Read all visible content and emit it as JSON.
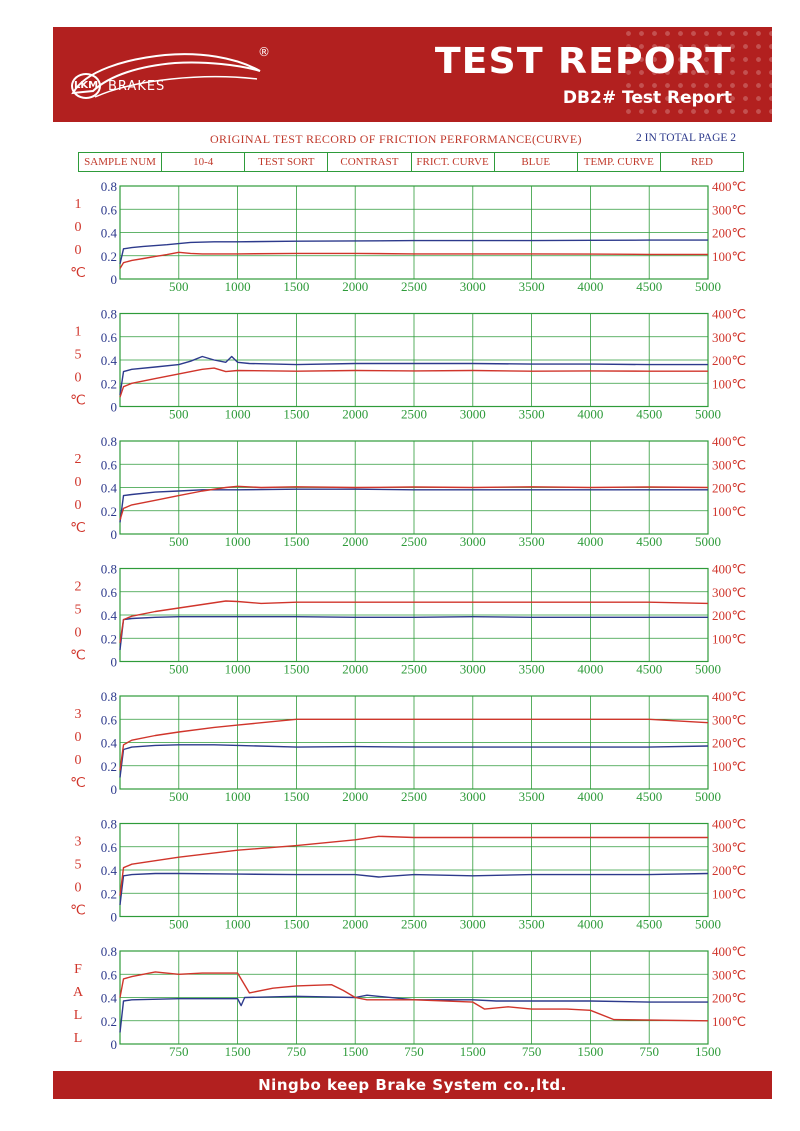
{
  "header": {
    "brand": "BRAKES",
    "brand_mark": "LKM",
    "registered": "®",
    "title": "TEST REPORT",
    "subtitle": "DB2# Test Report"
  },
  "record_title": "ORIGINAL TEST RECORD OF FRICTION PERFORMANCE(CURVE)",
  "page_label": "2 IN TOTAL PAGE 2",
  "info_table": [
    "SAMPLE NUM",
    "10-4",
    "TEST SORT",
    "CONTRAST",
    "FRICT. CURVE",
    "BLUE",
    "TEMP. CURVE",
    "RED"
  ],
  "footer": "Ningbo keep Brake System co.,ltd.",
  "colors": {
    "brand_red": "#b2201f",
    "grid": "#2e9b3a",
    "friction": "#2d3a8c",
    "temperature": "#d0352b"
  },
  "chart_data": [
    {
      "type": "line",
      "row_label": [
        "1",
        "0",
        "0",
        "℃"
      ],
      "x_ticks": [
        "500",
        "1000",
        "1500",
        "2000",
        "2500",
        "3000",
        "3500",
        "4000",
        "4500",
        "5000"
      ],
      "y_left_ticks": [
        "0",
        "0.2",
        "0.4",
        "0.6",
        "0.8"
      ],
      "y_right_ticks": [
        "100℃",
        "200℃",
        "300℃",
        "400℃"
      ],
      "xlim": [
        0,
        5000
      ],
      "ylim_left": [
        0,
        0.8
      ],
      "ylim_right": [
        0,
        400
      ],
      "series": [
        {
          "axis": "left",
          "color": "#2d3a8c",
          "x": [
            0,
            30,
            100,
            200,
            400,
            600,
            800,
            1000,
            1500,
            2000,
            2500,
            3000,
            3500,
            4000,
            4500,
            5000
          ],
          "y": [
            0.13,
            0.26,
            0.27,
            0.28,
            0.295,
            0.315,
            0.32,
            0.32,
            0.325,
            0.328,
            0.33,
            0.33,
            0.33,
            0.333,
            0.335,
            0.335
          ]
        },
        {
          "axis": "right",
          "color": "#d0352b",
          "x": [
            0,
            30,
            100,
            200,
            300,
            400,
            500,
            600,
            700,
            1000,
            1500,
            2000,
            2500,
            3000,
            3500,
            4000,
            4500,
            5000
          ],
          "y": [
            45,
            70,
            80,
            88,
            97,
            105,
            115,
            110,
            108,
            108,
            110,
            110,
            108,
            108,
            108,
            107,
            106,
            106
          ]
        }
      ]
    },
    {
      "type": "line",
      "row_label": [
        "1",
        "5",
        "0",
        "℃"
      ],
      "x_ticks": [
        "500",
        "1000",
        "1500",
        "2000",
        "2500",
        "3000",
        "3500",
        "4000",
        "4500",
        "5000"
      ],
      "y_left_ticks": [
        "0",
        "0.2",
        "0.4",
        "0.6",
        "0.8"
      ],
      "y_right_ticks": [
        "100℃",
        "200℃",
        "300℃",
        "400℃"
      ],
      "xlim": [
        0,
        5000
      ],
      "ylim_left": [
        0,
        0.8
      ],
      "ylim_right": [
        0,
        400
      ],
      "series": [
        {
          "axis": "left",
          "color": "#2d3a8c",
          "x": [
            0,
            30,
            100,
            300,
            500,
            600,
            700,
            800,
            900,
            950,
            1000,
            1100,
            1500,
            2000,
            2500,
            3000,
            3500,
            4000,
            4500,
            5000
          ],
          "y": [
            0.1,
            0.3,
            0.32,
            0.34,
            0.36,
            0.39,
            0.43,
            0.4,
            0.38,
            0.43,
            0.38,
            0.37,
            0.36,
            0.37,
            0.37,
            0.37,
            0.365,
            0.365,
            0.36,
            0.36
          ]
        },
        {
          "axis": "right",
          "color": "#d0352b",
          "x": [
            0,
            30,
            100,
            300,
            500,
            700,
            800,
            900,
            1000,
            1500,
            2000,
            2500,
            3000,
            3500,
            4000,
            4500,
            5000
          ],
          "y": [
            40,
            85,
            100,
            120,
            140,
            160,
            165,
            150,
            155,
            152,
            155,
            153,
            155,
            152,
            153,
            152,
            152
          ]
        }
      ]
    },
    {
      "type": "line",
      "row_label": [
        "2",
        "0",
        "0",
        "℃"
      ],
      "x_ticks": [
        "500",
        "1000",
        "1500",
        "2000",
        "2500",
        "3000",
        "3500",
        "4000",
        "4500",
        "5000"
      ],
      "y_left_ticks": [
        "0",
        "0.2",
        "0.4",
        "0.6",
        "0.8"
      ],
      "y_right_ticks": [
        "100℃",
        "200℃",
        "300℃",
        "400℃"
      ],
      "xlim": [
        0,
        5000
      ],
      "ylim_left": [
        0,
        0.8
      ],
      "ylim_right": [
        0,
        400
      ],
      "series": [
        {
          "axis": "left",
          "color": "#2d3a8c",
          "x": [
            0,
            30,
            100,
            300,
            500,
            700,
            1000,
            1500,
            2000,
            2500,
            3000,
            3500,
            4000,
            4500,
            5000
          ],
          "y": [
            0.1,
            0.33,
            0.34,
            0.36,
            0.37,
            0.38,
            0.38,
            0.385,
            0.385,
            0.38,
            0.38,
            0.38,
            0.38,
            0.38,
            0.38
          ]
        },
        {
          "axis": "right",
          "color": "#d0352b",
          "x": [
            0,
            30,
            100,
            300,
            500,
            700,
            900,
            1000,
            1200,
            1500,
            2000,
            2500,
            3000,
            3500,
            4000,
            4500,
            5000
          ],
          "y": [
            60,
            110,
            125,
            145,
            165,
            185,
            200,
            205,
            200,
            203,
            200,
            202,
            200,
            203,
            200,
            202,
            200
          ]
        }
      ]
    },
    {
      "type": "line",
      "row_label": [
        "2",
        "5",
        "0",
        "℃"
      ],
      "x_ticks": [
        "500",
        "1000",
        "1500",
        "2000",
        "2500",
        "3000",
        "3500",
        "4000",
        "4500",
        "5000"
      ],
      "y_left_ticks": [
        "0",
        "0.2",
        "0.4",
        "0.6",
        "0.8"
      ],
      "y_right_ticks": [
        "100℃",
        "200℃",
        "300℃",
        "400℃"
      ],
      "xlim": [
        0,
        5000
      ],
      "ylim_left": [
        0,
        0.8
      ],
      "ylim_right": [
        0,
        400
      ],
      "series": [
        {
          "axis": "left",
          "color": "#2d3a8c",
          "x": [
            0,
            30,
            100,
            300,
            500,
            1000,
            1500,
            2000,
            2500,
            3000,
            3500,
            4000,
            4500,
            5000
          ],
          "y": [
            0.1,
            0.36,
            0.37,
            0.38,
            0.385,
            0.385,
            0.385,
            0.38,
            0.38,
            0.385,
            0.38,
            0.38,
            0.38,
            0.38
          ]
        },
        {
          "axis": "right",
          "color": "#d0352b",
          "x": [
            0,
            30,
            100,
            300,
            500,
            700,
            900,
            1000,
            1200,
            1500,
            2000,
            2500,
            3000,
            3500,
            4000,
            4500,
            5000
          ],
          "y": [
            80,
            180,
            195,
            215,
            230,
            245,
            260,
            258,
            250,
            255,
            255,
            255,
            255,
            255,
            255,
            255,
            250
          ]
        }
      ]
    },
    {
      "type": "line",
      "row_label": [
        "3",
        "0",
        "0",
        "℃"
      ],
      "x_ticks": [
        "500",
        "1000",
        "1500",
        "2000",
        "2500",
        "3000",
        "3500",
        "4000",
        "4500",
        "5000"
      ],
      "y_left_ticks": [
        "0",
        "0.2",
        "0.4",
        "0.6",
        "0.8"
      ],
      "y_right_ticks": [
        "100℃",
        "200℃",
        "300℃",
        "400℃"
      ],
      "xlim": [
        0,
        5000
      ],
      "ylim_left": [
        0,
        0.8
      ],
      "ylim_right": [
        0,
        400
      ],
      "series": [
        {
          "axis": "left",
          "color": "#2d3a8c",
          "x": [
            0,
            30,
            100,
            300,
            500,
            800,
            1000,
            1500,
            2000,
            2500,
            3000,
            3500,
            4000,
            4500,
            5000
          ],
          "y": [
            0.1,
            0.34,
            0.36,
            0.375,
            0.38,
            0.38,
            0.375,
            0.36,
            0.365,
            0.36,
            0.36,
            0.36,
            0.36,
            0.36,
            0.37
          ]
        },
        {
          "axis": "right",
          "color": "#d0352b",
          "x": [
            0,
            30,
            100,
            300,
            500,
            800,
            1000,
            1300,
            1500,
            2000,
            2500,
            3000,
            3500,
            4000,
            4500,
            5000
          ],
          "y": [
            80,
            190,
            210,
            230,
            245,
            265,
            275,
            290,
            300,
            300,
            300,
            300,
            300,
            300,
            300,
            285
          ]
        }
      ]
    },
    {
      "type": "line",
      "row_label": [
        "3",
        "5",
        "0",
        "℃"
      ],
      "x_ticks": [
        "500",
        "1000",
        "1500",
        "2000",
        "2500",
        "3000",
        "3500",
        "4000",
        "4500",
        "5000"
      ],
      "y_left_ticks": [
        "0",
        "0.2",
        "0.4",
        "0.6",
        "0.8"
      ],
      "y_right_ticks": [
        "100℃",
        "200℃",
        "300℃",
        "400℃"
      ],
      "xlim": [
        0,
        5000
      ],
      "ylim_left": [
        0,
        0.8
      ],
      "ylim_right": [
        0,
        400
      ],
      "series": [
        {
          "axis": "left",
          "color": "#2d3a8c",
          "x": [
            0,
            30,
            100,
            300,
            500,
            1000,
            1500,
            2000,
            2200,
            2500,
            3000,
            3500,
            4000,
            4500,
            5000
          ],
          "y": [
            0.1,
            0.35,
            0.36,
            0.37,
            0.37,
            0.365,
            0.36,
            0.36,
            0.34,
            0.36,
            0.35,
            0.36,
            0.36,
            0.36,
            0.37
          ]
        },
        {
          "axis": "right",
          "color": "#d0352b",
          "x": [
            0,
            30,
            100,
            300,
            500,
            1000,
            1500,
            2000,
            2200,
            2500,
            3000,
            3500,
            4000,
            4500,
            5000
          ],
          "y": [
            90,
            210,
            225,
            240,
            255,
            285,
            305,
            330,
            345,
            340,
            340,
            340,
            340,
            340,
            340
          ]
        }
      ]
    },
    {
      "type": "line",
      "row_label": [
        "F",
        "A",
        "L",
        "L"
      ],
      "x_ticks": [
        "750",
        "1500",
        "750",
        "1500",
        "750",
        "1500",
        "750",
        "1500",
        "750",
        "1500"
      ],
      "y_left_ticks": [
        "0",
        "0.2",
        "0.4",
        "0.6",
        "0.8"
      ],
      "y_right_ticks": [
        "100℃",
        "200℃",
        "300℃",
        "400℃"
      ],
      "xlim": [
        0,
        5000
      ],
      "ylim_left": [
        0,
        0.8
      ],
      "ylim_right": [
        0,
        400
      ],
      "series": [
        {
          "axis": "left",
          "color": "#2d3a8c",
          "x": [
            0,
            30,
            100,
            500,
            1000,
            1000,
            1030,
            1060,
            1500,
            2000,
            2100,
            2500,
            3000,
            3200,
            3500,
            4000,
            4500,
            5000
          ],
          "y": [
            0.1,
            0.37,
            0.38,
            0.39,
            0.39,
            0.39,
            0.33,
            0.4,
            0.41,
            0.4,
            0.42,
            0.38,
            0.38,
            0.37,
            0.37,
            0.37,
            0.36,
            0.36
          ]
        },
        {
          "axis": "right",
          "color": "#d0352b",
          "x": [
            0,
            30,
            100,
            300,
            500,
            700,
            1000,
            1100,
            1300,
            1500,
            1800,
            1900,
            2000,
            2100,
            2500,
            3000,
            3100,
            3300,
            3500,
            3800,
            4000,
            4200,
            5000
          ],
          "y": [
            200,
            280,
            290,
            310,
            300,
            305,
            305,
            220,
            240,
            250,
            255,
            230,
            200,
            190,
            190,
            180,
            150,
            160,
            150,
            150,
            145,
            105,
            100
          ]
        }
      ]
    }
  ]
}
